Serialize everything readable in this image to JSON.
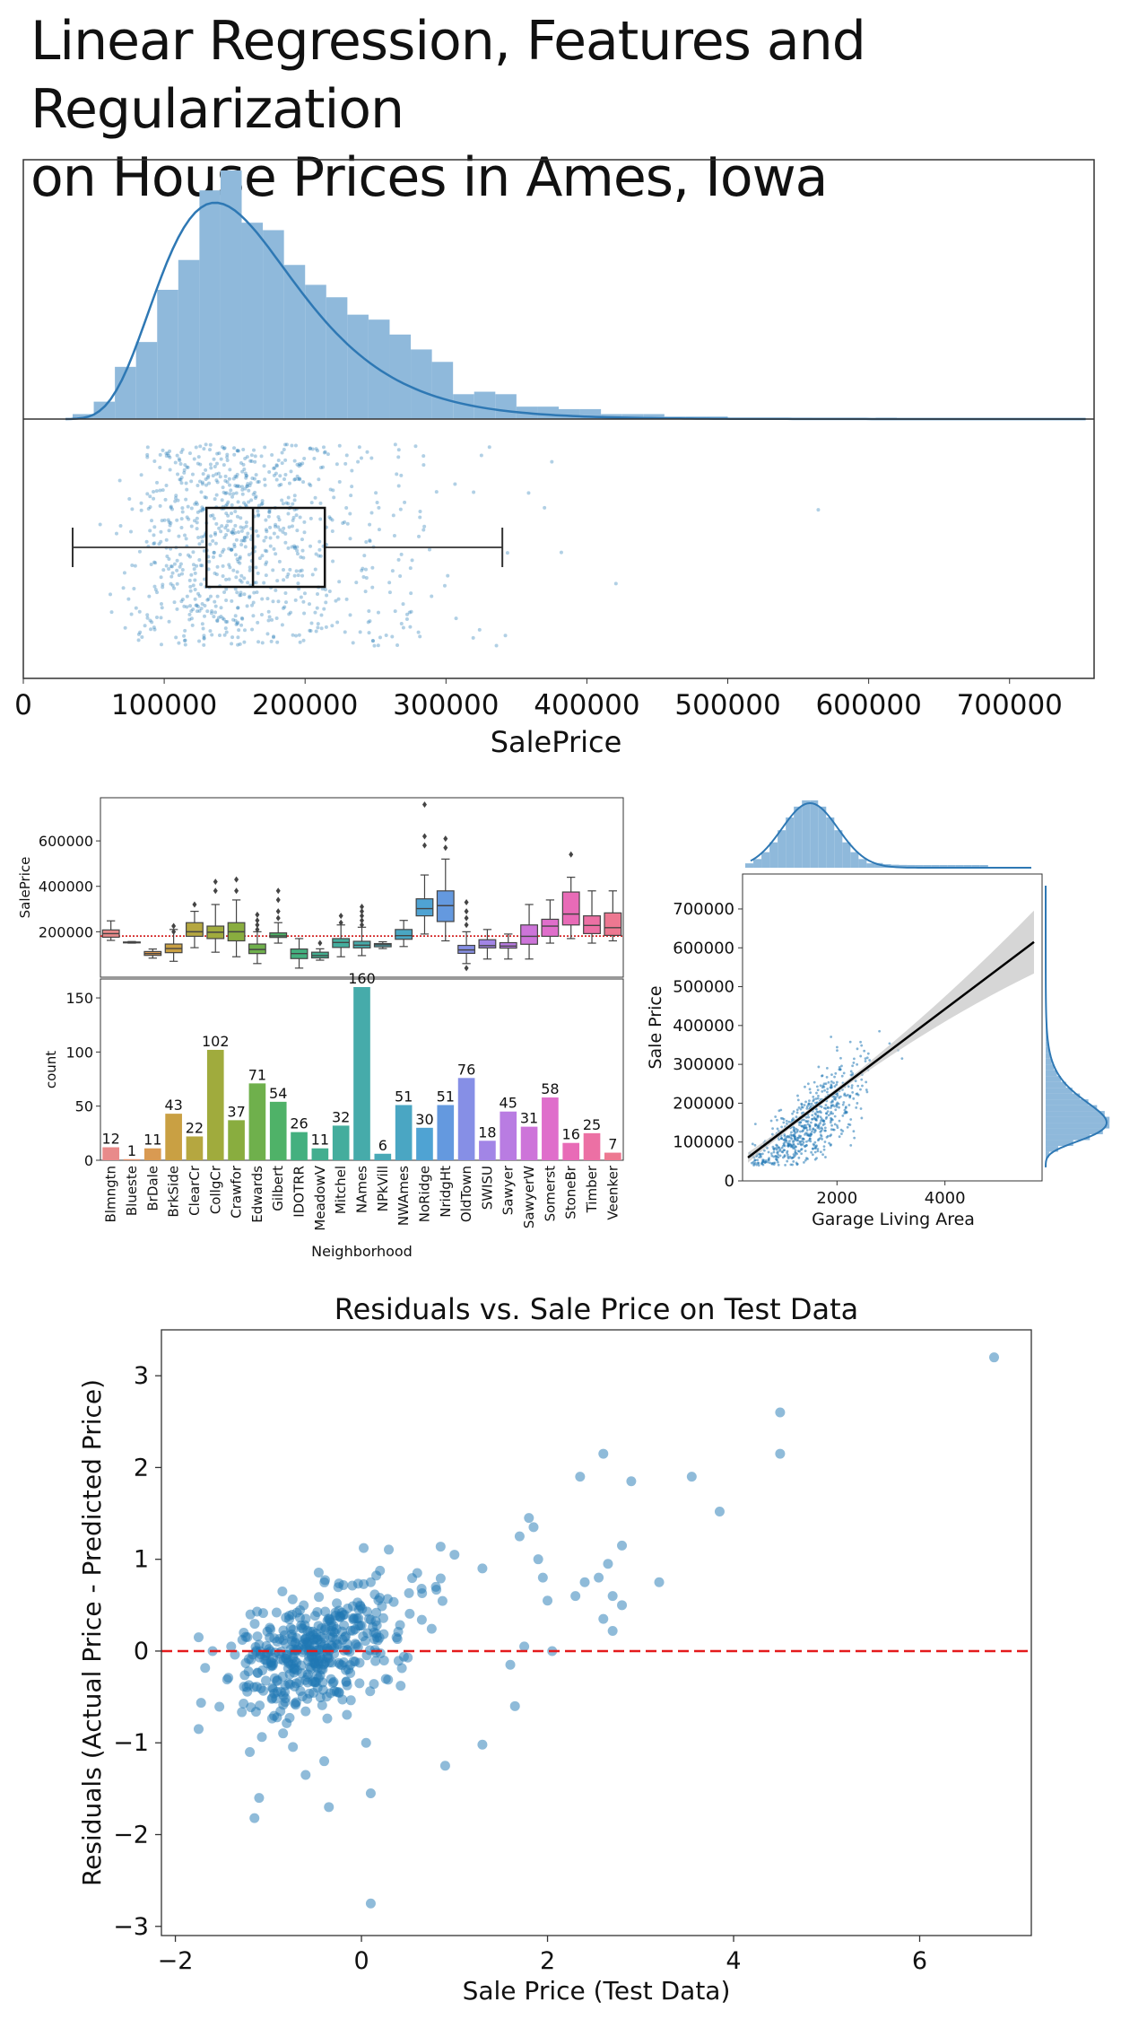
{
  "page": {
    "title_line1": "Linear Regression, Features and Regularization",
    "title_line2": "on House Prices in Ames, Iowa"
  },
  "colors": {
    "hist_fill": "#8fb9db",
    "kde_line": "#2e78b4",
    "point": "#1f77b4",
    "regression_line": "#000000",
    "ci_band": "#c8c8c8",
    "zero_line": "#e41a1c",
    "mean_line": "#cc0000"
  },
  "chart_data": [
    {
      "type": "histogram",
      "title": "",
      "xlabel": "SalePrice",
      "ylabel": "",
      "xlim": [
        0,
        760000
      ],
      "xticks": [
        0,
        100000,
        200000,
        300000,
        400000,
        500000,
        600000,
        700000
      ],
      "x_tick_labels": [
        "0",
        "100000",
        "200000",
        "300000",
        "400000",
        "500000",
        "600000",
        "700000"
      ],
      "bin_edges": [
        35000,
        50000,
        65000,
        80000,
        95000,
        110000,
        125000,
        140000,
        155000,
        170000,
        185000,
        200000,
        215000,
        230000,
        245000,
        260000,
        275000,
        290000,
        305000,
        320000,
        335000,
        350000,
        365000,
        380000,
        395000,
        410000,
        425000,
        440000,
        455000,
        470000,
        485000,
        500000,
        515000,
        530000,
        545000,
        560000,
        575000,
        590000,
        605000,
        620000,
        635000,
        650000,
        665000,
        680000,
        695000,
        710000,
        725000,
        740000,
        755000
      ],
      "bin_heights": [
        0.02,
        0.07,
        0.21,
        0.31,
        0.52,
        0.64,
        0.92,
        1.0,
        0.79,
        0.76,
        0.62,
        0.54,
        0.49,
        0.42,
        0.4,
        0.34,
        0.28,
        0.23,
        0.1,
        0.11,
        0.1,
        0.05,
        0.05,
        0.04,
        0.04,
        0.02,
        0.02,
        0.02,
        0.01,
        0.01,
        0.01,
        0.005,
        0.005,
        0.005,
        0.004,
        0.003,
        0.003,
        0.002,
        0.005,
        0.003,
        0.002,
        0.002,
        0.002,
        0.002,
        0.001,
        0.001,
        0.001,
        0.002
      ],
      "boxplot": {
        "whisker_low": 35000,
        "q1": 130000,
        "median": 163000,
        "q3": 214000,
        "whisker_high": 340000
      }
    },
    {
      "type": "boxplot",
      "title": "",
      "xlabel": "",
      "ylabel": "SalePrice",
      "ylim": [
        0,
        790000
      ],
      "yticks": [
        200000,
        400000,
        600000
      ],
      "mean_line": 181000,
      "categories": [
        "Blmngtn",
        "Blueste",
        "BrDale",
        "BrkSide",
        "ClearCr",
        "CollgCr",
        "Crawfor",
        "Edwards",
        "Gilbert",
        "IDOTRR",
        "MeadowV",
        "Mitchel",
        "NAmes",
        "NPkVill",
        "NWAmes",
        "NoRidge",
        "NridgHt",
        "OldTown",
        "SWISU",
        "Sawyer",
        "SawyerW",
        "Somerst",
        "StoneBr",
        "Timber",
        "Veenker"
      ],
      "colors": [
        "#e88a8a",
        "#e5936d",
        "#d99a52",
        "#c9a043",
        "#b5a740",
        "#a0ab3d",
        "#89ad3f",
        "#6fb04c",
        "#4fb268",
        "#44b07f",
        "#43ae8f",
        "#44ad9d",
        "#46abaa",
        "#48a9b6",
        "#4aa6c3",
        "#4fa3d3",
        "#6499df",
        "#868fe6",
        "#a285e6",
        "#b97ce2",
        "#cd74d9",
        "#df6ecb",
        "#e86bb7",
        "#ec70a4",
        "#ed7891"
      ],
      "boxes": [
        [
          162000,
          176000,
          192000,
          208000,
          248000
        ],
        [
          150000,
          152000,
          153000,
          155000,
          157000
        ],
        [
          84000,
          96000,
          104000,
          113000,
          124000
        ],
        [
          70000,
          108000,
          126000,
          146000,
          210000
        ],
        [
          130000,
          180000,
          200000,
          240000,
          290000
        ],
        [
          110000,
          170000,
          198000,
          225000,
          320000
        ],
        [
          90000,
          160000,
          200000,
          240000,
          340000
        ],
        [
          60000,
          104000,
          122000,
          146000,
          200000
        ],
        [
          150000,
          175000,
          182000,
          195000,
          240000
        ],
        [
          40000,
          82000,
          104000,
          124000,
          170000
        ],
        [
          75000,
          85000,
          95000,
          110000,
          125000
        ],
        [
          90000,
          131000,
          153000,
          170000,
          230000
        ],
        [
          95000,
          129000,
          141000,
          158000,
          220000
        ],
        [
          126000,
          134000,
          143000,
          148000,
          156000
        ],
        [
          135000,
          167000,
          183000,
          210000,
          250000
        ],
        [
          190000,
          270000,
          302000,
          345000,
          450000
        ],
        [
          160000,
          245000,
          315000,
          380000,
          520000
        ],
        [
          60000,
          105000,
          120000,
          140000,
          200000
        ],
        [
          80000,
          129000,
          139000,
          165000,
          210000
        ],
        [
          80000,
          128000,
          137000,
          152000,
          190000
        ],
        [
          80000,
          145000,
          180000,
          230000,
          320000
        ],
        [
          150000,
          180000,
          225000,
          255000,
          340000
        ],
        [
          170000,
          230000,
          278000,
          375000,
          440000
        ],
        [
          150000,
          192000,
          228000,
          270000,
          380000
        ],
        [
          160000,
          184000,
          218000,
          283000,
          380000
        ]
      ],
      "outliers": [
        [],
        [],
        [],
        [
          200000,
          225000
        ],
        [
          320000
        ],
        [
          380000,
          420000
        ],
        [
          380000,
          430000
        ],
        [
          210000,
          230000,
          250000,
          275000
        ],
        [
          260000,
          290000,
          340000,
          380000
        ],
        [],
        [
          150000
        ],
        [
          240000,
          270000
        ],
        [
          230000,
          250000,
          270000,
          290000,
          310000
        ],
        [],
        [],
        [
          580000,
          620000,
          760000
        ],
        [
          570000,
          610000
        ],
        [
          230000,
          260000,
          290000,
          330000,
          40000
        ],
        [],
        [],
        [],
        [],
        [
          540000
        ],
        [],
        []
      ]
    },
    {
      "type": "bar",
      "title": "",
      "xlabel": "Neighborhood",
      "ylabel": "count",
      "ylim": [
        0,
        160
      ],
      "yticks": [
        0,
        50,
        100,
        150
      ],
      "categories": [
        "Blmngtn",
        "Blueste",
        "BrDale",
        "BrkSide",
        "ClearCr",
        "CollgCr",
        "Crawfor",
        "Edwards",
        "Gilbert",
        "IDOTRR",
        "MeadowV",
        "Mitchel",
        "NAmes",
        "NPkVill",
        "NWAmes",
        "NoRidge",
        "NridgHt",
        "OldTown",
        "SWISU",
        "Sawyer",
        "SawyerW",
        "Somerst",
        "StoneBr",
        "Timber",
        "Veenker"
      ],
      "values": [
        12,
        1,
        11,
        43,
        22,
        102,
        37,
        71,
        54,
        26,
        11,
        32,
        160,
        6,
        51,
        30,
        51,
        76,
        18,
        45,
        31,
        58,
        16,
        25,
        7
      ]
    },
    {
      "type": "scatter",
      "title": "",
      "xlabel": "Garage Living Area",
      "ylabel": "Sale Price",
      "xlim": [
        250,
        5800
      ],
      "ylim": [
        0,
        790000
      ],
      "xticks": [
        2000,
        4000
      ],
      "yticks": [
        0,
        100000,
        200000,
        300000,
        400000,
        500000,
        600000,
        700000
      ],
      "regression": {
        "x0": 350,
        "y0": 60000,
        "x1": 5650,
        "y1": 615000,
        "ci_low_end": 560000,
        "ci_high_end": 690000
      }
    },
    {
      "type": "scatter",
      "title": "Residuals vs. Sale Price on Test Data",
      "xlabel": "Sale Price (Test Data)",
      "ylabel": "Residuals (Actual Price - Predicted Price)",
      "xlim": [
        -2.15,
        7.2
      ],
      "ylim": [
        -3.1,
        3.5
      ],
      "xticks": [
        -2,
        0,
        2,
        4,
        6
      ],
      "yticks": [
        -3,
        -2,
        -1,
        0,
        1,
        2,
        3
      ],
      "zero_line": 0,
      "points": [
        [
          6.8,
          3.2
        ],
        [
          4.5,
          2.6
        ],
        [
          4.5,
          2.15
        ],
        [
          3.55,
          1.9
        ],
        [
          3.85,
          1.52
        ],
        [
          2.6,
          2.15
        ],
        [
          2.35,
          1.9
        ],
        [
          2.9,
          1.85
        ],
        [
          2.8,
          1.15
        ],
        [
          3.2,
          0.75
        ],
        [
          2.65,
          0.95
        ],
        [
          2.55,
          0.8
        ],
        [
          2.4,
          0.75
        ],
        [
          2.7,
          0.6
        ],
        [
          2.8,
          0.5
        ],
        [
          2.3,
          0.6
        ],
        [
          2.6,
          0.35
        ],
        [
          2.7,
          0.22
        ],
        [
          1.8,
          1.45
        ],
        [
          1.85,
          1.35
        ],
        [
          1.7,
          1.25
        ],
        [
          1.9,
          1.0
        ],
        [
          1.95,
          0.8
        ],
        [
          2.0,
          0.55
        ],
        [
          2.05,
          0.0
        ],
        [
          1.75,
          0.05
        ],
        [
          1.6,
          -0.15
        ],
        [
          1.65,
          -0.6
        ],
        [
          0.1,
          -2.75
        ],
        [
          0.1,
          -1.55
        ],
        [
          -0.35,
          -1.7
        ],
        [
          -1.15,
          -1.82
        ],
        [
          -1.1,
          -1.6
        ],
        [
          -0.4,
          -1.2
        ],
        [
          0.05,
          -1.0
        ],
        [
          0.9,
          -1.25
        ],
        [
          1.3,
          -1.02
        ],
        [
          -1.2,
          -1.1
        ],
        [
          -1.75,
          -0.85
        ],
        [
          -1.75,
          0.15
        ],
        [
          -1.6,
          0.0
        ],
        [
          -1.4,
          0.05
        ],
        [
          -0.85,
          0.65
        ],
        [
          0.1,
          0.75
        ],
        [
          0.6,
          0.85
        ],
        [
          1.0,
          1.05
        ],
        [
          1.3,
          0.9
        ],
        [
          0.8,
          0.7
        ],
        [
          -0.6,
          -1.35
        ]
      ],
      "cluster": {
        "count": 420,
        "x_mean": -0.45,
        "x_sd": 0.45,
        "y_mean": 0.0,
        "y_sd": 0.32
      }
    }
  ]
}
